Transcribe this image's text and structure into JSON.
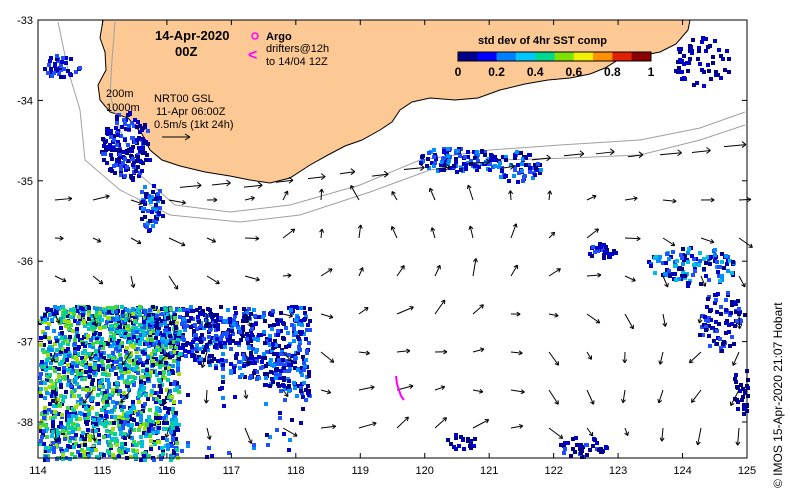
{
  "header": {
    "date": "14-Apr-2020",
    "hour": "00Z"
  },
  "legend": {
    "argo_label": "Argo",
    "drifters_line1": "drifters@12h",
    "drifters_line2": "to 14/04 12Z",
    "argo_color": "#ff00ff",
    "drifter_color": "#ff00ff"
  },
  "isobaths": {
    "label_200": "200m",
    "label_1000": "1000m"
  },
  "current_model": {
    "line1": "NRT00 GSL",
    "line2": "11-Apr 06:00Z",
    "scale_label": "0.5m/s (1kt 24h)"
  },
  "colorbar": {
    "title": "std dev of 4hr SST comp",
    "ticks": [
      "0",
      "0.2",
      "0.4",
      "0.6",
      "0.8",
      "1"
    ],
    "colors": [
      "#00008b",
      "#0000ff",
      "#0080ff",
      "#00c8ff",
      "#00d890",
      "#80e000",
      "#f0f000",
      "#ff9000",
      "#e02000",
      "#8b0000"
    ]
  },
  "axes": {
    "lon_ticks": [
      "114",
      "115",
      "116",
      "117",
      "118",
      "119",
      "120",
      "121",
      "122",
      "123",
      "124",
      "125"
    ],
    "lat_ticks": [
      "-33",
      "-34",
      "-35",
      "-36",
      "-37",
      "-38"
    ]
  },
  "colors": {
    "land": "#fcc894",
    "coast": "#000000",
    "isobath": "#a0a0a0"
  },
  "credit": "© IMOS 15-Apr-2020 21:07 Hobart"
}
